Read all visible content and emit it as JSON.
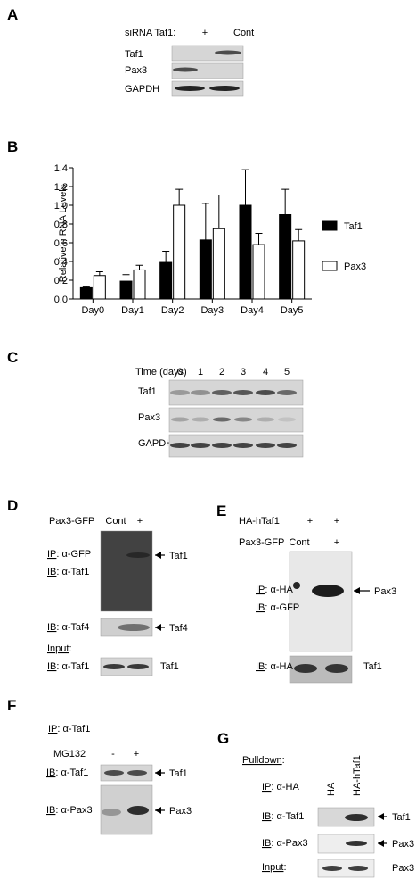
{
  "panels": {
    "A": {
      "letter": "A",
      "header": "siRNA Taf1:",
      "lanes": [
        "+",
        "Cont"
      ],
      "rows": [
        "Taf1",
        "Pax3",
        "GAPDH"
      ]
    },
    "B": {
      "letter": "B"
    },
    "C": {
      "letter": "C",
      "header": "Time (days)",
      "lanes": [
        "0",
        "1",
        "2",
        "3",
        "4",
        "5"
      ],
      "rows": [
        "Taf1",
        "Pax3",
        "GAPDH"
      ]
    },
    "D": {
      "letter": "D",
      "header": "Pax3-GFP",
      "lanes": [
        "Cont",
        "+"
      ],
      "labels": [
        {
          "u": "IP",
          "t": ": α-GFP"
        },
        {
          "u": "IB",
          "t": ": α-Taf1"
        },
        {
          "u": "IB",
          "t": ": α-Taf4"
        },
        {
          "u": "Input",
          "t": ":"
        },
        {
          "u": "IB",
          "t": ": α-Taf1"
        }
      ],
      "targets": [
        "Taf1",
        "Taf4",
        "Taf1"
      ]
    },
    "E": {
      "letter": "E",
      "header": "HA-hTaf1",
      "lanes": [
        "+",
        "+"
      ],
      "header2": "Pax3-GFP",
      "lanes2": [
        "Cont",
        "+"
      ],
      "labels": [
        {
          "u": "IP",
          "t": ": α-HA"
        },
        {
          "u": "IB",
          "t": ": α-GFP"
        },
        {
          "u": "IB",
          "t": ": α-HA"
        }
      ],
      "targets": [
        "Pax3",
        "Taf1"
      ]
    },
    "F": {
      "letter": "F",
      "labels": [
        {
          "u": "IP",
          "t": ": α-Taf1"
        },
        {
          "u": "IB",
          "t": ": α-Taf1"
        },
        {
          "u": "IB",
          "t": ": α-Pax3"
        }
      ],
      "header": "MG132",
      "lanes": [
        "-",
        "+"
      ],
      "targets": [
        "Taf1",
        "Pax3"
      ]
    },
    "G": {
      "letter": "G",
      "labels": [
        {
          "u": "Pulldown",
          "t": ":"
        },
        {
          "u": "IP",
          "t": ": α-HA"
        },
        {
          "u": "IB",
          "t": ": α-Taf1"
        },
        {
          "u": "IB",
          "t": ": α-Pax3"
        },
        {
          "u": "Input",
          "t": ":"
        }
      ],
      "lanes": [
        "HA",
        "HA-hTaf1"
      ],
      "targets": [
        "Taf1",
        "Pax3",
        "Pax3"
      ]
    }
  },
  "chart_data": {
    "type": "bar",
    "y_label": "Relative mRNA Levels",
    "categories": [
      "Day0",
      "Day1",
      "Day2",
      "Day3",
      "Day4",
      "Day5"
    ],
    "series": [
      {
        "name": "Taf1",
        "color": "#000000",
        "values": [
          0.12,
          0.19,
          0.39,
          0.63,
          1.0,
          0.9
        ],
        "errors": [
          0.01,
          0.07,
          0.12,
          0.39,
          0.38,
          0.27
        ]
      },
      {
        "name": "Pax3",
        "color": "#ffffff",
        "values": [
          0.25,
          0.31,
          1.0,
          0.75,
          0.58,
          0.62
        ],
        "errors": [
          0.04,
          0.05,
          0.17,
          0.36,
          0.12,
          0.12
        ]
      }
    ],
    "ylim": [
      0,
      1.4
    ],
    "yticks": [
      {
        "value": 0,
        "label": "0.0"
      },
      0.2,
      0.4,
      0.6,
      0.8,
      {
        "value": 1,
        "label": "1.0"
      },
      1.2,
      1.4
    ],
    "legend": "right"
  }
}
